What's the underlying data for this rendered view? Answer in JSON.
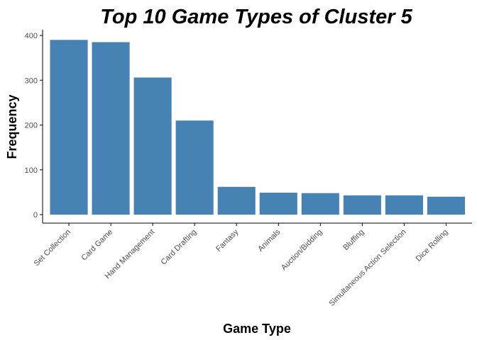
{
  "chart_data": {
    "type": "bar",
    "title": "Top 10 Game Types of Cluster  5",
    "xlabel": "Game Type",
    "ylabel": "Frequency",
    "categories": [
      "Set Collection",
      "Card Game",
      "Hand Management",
      "Card Drafting",
      "Fantasy",
      "Animals",
      "Auction/Bidding",
      "Bluffing",
      "Simultaneous Action Selection",
      "Dice Rolling"
    ],
    "values": [
      390,
      385,
      306,
      210,
      62,
      49,
      48,
      43,
      43,
      40
    ],
    "ylim": [
      0,
      410
    ],
    "yticks": [
      0,
      100,
      200,
      300,
      400
    ],
    "bar_color": "#4682B4",
    "axis_color": "#000000",
    "tick_label_color": "#4D4D4D",
    "grid": false,
    "legend": "none"
  }
}
